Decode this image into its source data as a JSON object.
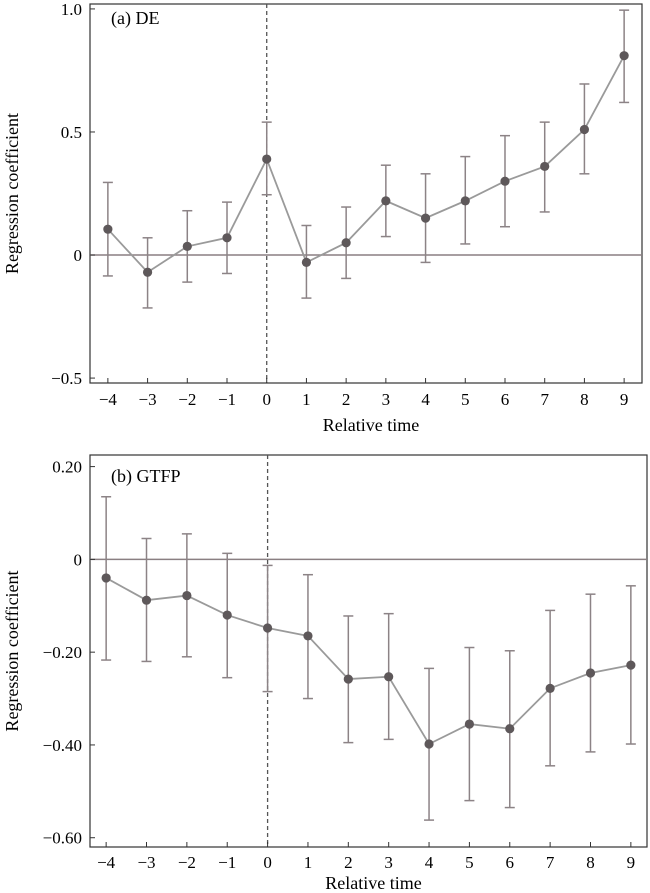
{
  "chart_data": [
    {
      "type": "line",
      "title": "(a) DE",
      "xlabel": "Relative time",
      "ylabel": "Regression coefficient",
      "x": [
        -4,
        -3,
        -2,
        -1,
        0,
        1,
        2,
        3,
        4,
        5,
        6,
        7,
        8,
        9
      ],
      "xticks": [
        "−4",
        "−3",
        "−2",
        "−1",
        "0",
        "1",
        "2",
        "3",
        "4",
        "5",
        "6",
        "7",
        "8",
        "9"
      ],
      "yticks": [
        {
          "value": 1.0,
          "label": "1.0"
        },
        {
          "value": 0.5,
          "label": "0.5"
        },
        {
          "value": 0,
          "label": "0"
        },
        {
          "value": -0.5,
          "label": "−0.5"
        }
      ],
      "ylim": [
        -0.52,
        1.02
      ],
      "xlim": [
        -4.45,
        9.45
      ],
      "reference_line_y": 0,
      "event_line_x": 0,
      "series": [
        {
          "values": [
            0.105,
            -0.07,
            0.035,
            0.07,
            0.39,
            -0.03,
            0.05,
            0.22,
            0.15,
            0.22,
            0.3,
            0.36,
            0.51,
            0.81
          ],
          "lower": [
            -0.085,
            -0.215,
            -0.11,
            -0.075,
            0.245,
            -0.175,
            -0.095,
            0.075,
            -0.03,
            0.045,
            0.115,
            0.175,
            0.33,
            0.62
          ],
          "upper": [
            0.295,
            0.07,
            0.18,
            0.215,
            0.54,
            0.12,
            0.195,
            0.365,
            0.33,
            0.4,
            0.485,
            0.54,
            0.695,
            0.995
          ]
        }
      ]
    },
    {
      "type": "line",
      "title": "(b) GTFP",
      "xlabel": "Relative time",
      "ylabel": "Regression coefficient",
      "x": [
        -4,
        -3,
        -2,
        -1,
        0,
        1,
        2,
        3,
        4,
        5,
        6,
        7,
        8,
        9
      ],
      "xticks": [
        "−4",
        "−3",
        "−2",
        "−1",
        "0",
        "1",
        "2",
        "3",
        "4",
        "5",
        "6",
        "7",
        "8",
        "9"
      ],
      "yticks": [
        {
          "value": 0.2,
          "label": "0.20"
        },
        {
          "value": 0,
          "label": "0"
        },
        {
          "value": -0.2,
          "label": "−0.20"
        },
        {
          "value": -0.4,
          "label": "−0.40"
        },
        {
          "value": -0.6,
          "label": "−0.60"
        }
      ],
      "ylim": [
        -0.62,
        0.225
      ],
      "xlim": [
        -4.4,
        9.4
      ],
      "reference_line_y": 0,
      "event_line_x": 0,
      "series": [
        {
          "values": [
            -0.04,
            -0.088,
            -0.078,
            -0.12,
            -0.148,
            -0.165,
            -0.258,
            -0.253,
            -0.398,
            -0.355,
            -0.365,
            -0.278,
            -0.245,
            -0.228
          ],
          "lower": [
            -0.217,
            -0.22,
            -0.21,
            -0.255,
            -0.285,
            -0.3,
            -0.395,
            -0.388,
            -0.562,
            -0.52,
            -0.535,
            -0.445,
            -0.415,
            -0.398
          ],
          "upper": [
            0.135,
            0.045,
            0.055,
            0.013,
            -0.013,
            -0.033,
            -0.122,
            -0.117,
            -0.235,
            -0.19,
            -0.197,
            -0.11,
            -0.075,
            -0.057
          ]
        }
      ]
    }
  ]
}
